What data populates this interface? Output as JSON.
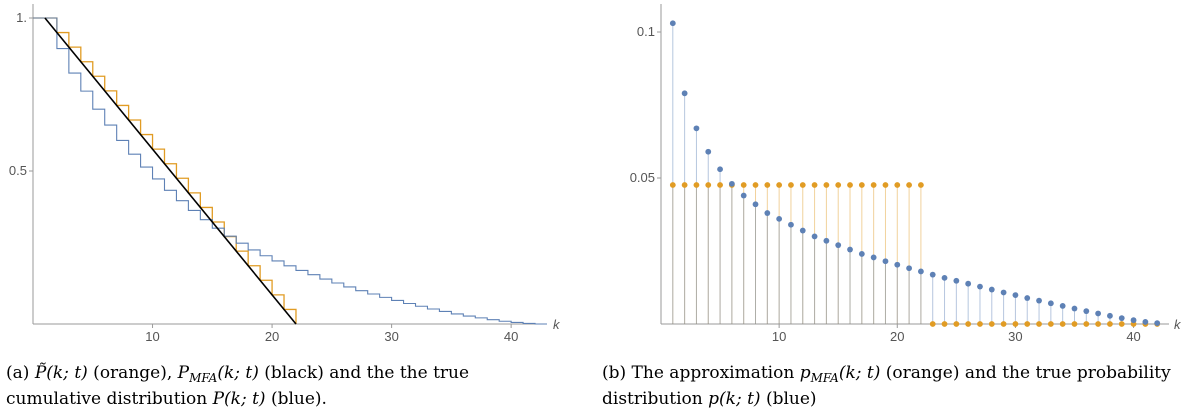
{
  "chart_data": [
    {
      "type": "line",
      "panel": "a",
      "xlabel": "k",
      "ylabel": "",
      "xlim": [
        0,
        43
      ],
      "ylim": [
        0,
        1.0
      ],
      "x_ticks": [
        10,
        20,
        30,
        40
      ],
      "y_ticks": [
        {
          "value": 0.5,
          "label": "0.5"
        },
        {
          "value": 1.0,
          "label": "1."
        }
      ],
      "grid": false,
      "series": [
        {
          "color": "#e19c24",
          "style": "step",
          "k_max": 21
        },
        {
          "color": "#000000",
          "style": "line",
          "points": [
            [
              1,
              1.0
            ],
            [
              22,
              0.0
            ]
          ]
        },
        {
          "color": "#5e81b5",
          "style": "step",
          "values": [
            1.0,
            0.9,
            0.82,
            0.761,
            0.702,
            0.65,
            0.6,
            0.555,
            0.513,
            0.474,
            0.437,
            0.403,
            0.371,
            0.341,
            0.313,
            0.287,
            0.264,
            0.242,
            0.223,
            0.206,
            0.19,
            0.175,
            0.161,
            0.147,
            0.134,
            0.121,
            0.109,
            0.098,
            0.087,
            0.077,
            0.067,
            0.058,
            0.049,
            0.041,
            0.033,
            0.026,
            0.02,
            0.014,
            0.009,
            0.005,
            0.002,
            0.0
          ]
        }
      ]
    },
    {
      "type": "scatter",
      "panel": "b",
      "xlabel": "k",
      "ylabel": "",
      "xlim": [
        0,
        43
      ],
      "ylim": [
        0,
        0.1
      ],
      "x_ticks": [
        10,
        20,
        30,
        40
      ],
      "y_ticks": [
        {
          "value": 0.05,
          "label": "0.05"
        },
        {
          "value": 0.1,
          "label": "0.1"
        }
      ],
      "grid": false,
      "series": [
        {
          "color": "#5e81b5",
          "style": "stem",
          "k": [
            1,
            2,
            3,
            4,
            5,
            6,
            7,
            8,
            9,
            10,
            11,
            12,
            13,
            14,
            15,
            16,
            17,
            18,
            19,
            20,
            21,
            22,
            23,
            24,
            25,
            26,
            27,
            28,
            29,
            30,
            31,
            32,
            33,
            34,
            35,
            36,
            37,
            38,
            39,
            40,
            41,
            42
          ],
          "values": [
            0.103,
            0.079,
            0.067,
            0.059,
            0.053,
            0.048,
            0.044,
            0.041,
            0.038,
            0.036,
            0.034,
            0.032,
            0.03,
            0.0285,
            0.027,
            0.0255,
            0.024,
            0.0228,
            0.0215,
            0.0203,
            0.0191,
            0.018,
            0.0169,
            0.0158,
            0.0148,
            0.0138,
            0.0128,
            0.0118,
            0.0108,
            0.0099,
            0.0089,
            0.008,
            0.0071,
            0.0062,
            0.0053,
            0.0044,
            0.0036,
            0.0028,
            0.002,
            0.0013,
            0.0007,
            0.0003
          ]
        },
        {
          "color": "#e19c24",
          "style": "stem",
          "k": [
            1,
            2,
            3,
            4,
            5,
            6,
            7,
            8,
            9,
            10,
            11,
            12,
            13,
            14,
            15,
            16,
            17,
            18,
            19,
            20,
            21,
            22,
            23,
            24,
            25,
            26,
            27,
            28,
            29,
            30,
            31,
            32,
            33,
            34,
            35,
            36,
            37,
            38,
            39,
            40,
            41,
            42
          ],
          "values": [
            0.0476,
            0.0476,
            0.0476,
            0.0476,
            0.0476,
            0.0476,
            0.0476,
            0.0476,
            0.0476,
            0.0476,
            0.0476,
            0.0476,
            0.0476,
            0.0476,
            0.0476,
            0.0476,
            0.0476,
            0.0476,
            0.0476,
            0.0476,
            0.0476,
            0.0476,
            0,
            0,
            0,
            0,
            0,
            0,
            0,
            0,
            0,
            0,
            0,
            0,
            0,
            0,
            0,
            0,
            0,
            0,
            0,
            0
          ]
        }
      ]
    }
  ],
  "captions": {
    "a": {
      "prefix": "(a)",
      "p_tilde": "P̃(k; t)",
      "t1": " (orange), ",
      "p_mfa": "P",
      "mfa_sub": "MFA",
      "p_mfa_args": "(k; t)",
      "t2": " (black) and the the true cumulative distribution ",
      "p_true": "P(k; t)",
      "t3": " (blue)."
    },
    "b": {
      "prefix": "(b)",
      "t1": "  The approximation ",
      "p_mfa": "p",
      "mfa_sub": "MFA",
      "p_mfa_args": "(k; t)",
      "t2": " (orange) and the true probability distribution ",
      "p_true": "p(k; t)",
      "t3": " (blue)"
    }
  }
}
